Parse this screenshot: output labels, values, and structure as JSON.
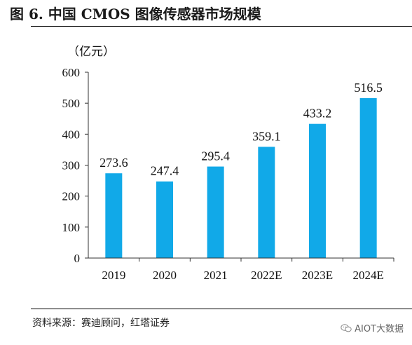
{
  "figure": {
    "title": "图 6. 中国 CMOS 图像传感器市场规模",
    "source": "资料来源：赛迪顾问，红塔证券",
    "watermark": "AIOT大数据"
  },
  "colors": {
    "bar": "#11A9E8",
    "axis": "#333333"
  },
  "chart_data": {
    "type": "bar",
    "title": "",
    "unit_label": "（亿元）",
    "xlabel": "",
    "ylabel": "",
    "categories": [
      "2019",
      "2020",
      "2021",
      "2022E",
      "2023E",
      "2024E"
    ],
    "values": [
      273.6,
      247.4,
      295.4,
      359.1,
      433.2,
      516.5
    ],
    "value_labels": [
      "273.6",
      "247.4",
      "295.4",
      "359.1",
      "433.2",
      "516.5"
    ],
    "ylim": [
      0,
      600
    ],
    "yticks": [
      0,
      100,
      200,
      300,
      400,
      500,
      600
    ],
    "grid": false,
    "legend": "none"
  }
}
